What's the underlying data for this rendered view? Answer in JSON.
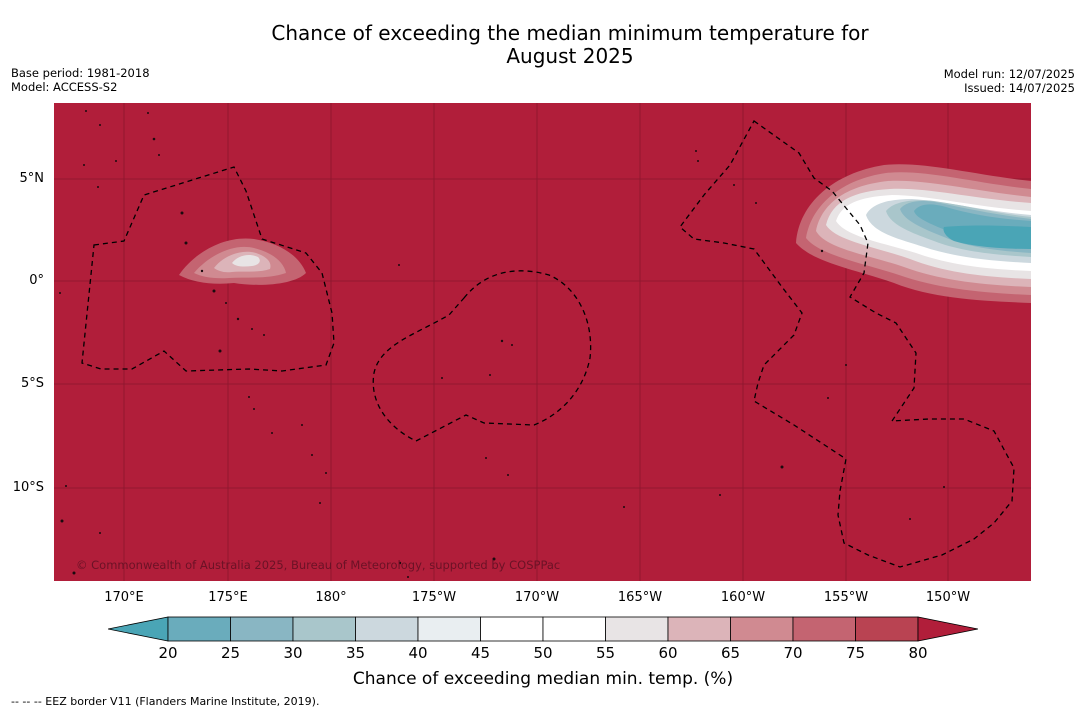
{
  "header": {
    "title_line1": "Chance of exceeding the median minimum temperature for",
    "title_line2": "August 2025",
    "base_period": "Base period: 1981-2018",
    "model": "Model: ACCESS-S2",
    "model_run": "Model run: 12/07/2025",
    "issued": "Issued: 14/07/2025"
  },
  "map": {
    "copyright": "© Commonwealth of Australia 2025, Bureau of Meteorology, supported by COSPPac",
    "lat_labels": [
      "5°N",
      "0°",
      "5°S",
      "10°S"
    ],
    "lon_labels": [
      "170°E",
      "175°E",
      "180°",
      "175°W",
      "170°W",
      "165°W",
      "160°W",
      "155°W",
      "150°W"
    ],
    "background_color": "#b11e3a",
    "eez_line_style": "dashed black"
  },
  "colorbar": {
    "ticks": [
      "20",
      "25",
      "30",
      "35",
      "40",
      "45",
      "50",
      "55",
      "60",
      "65",
      "70",
      "75",
      "80"
    ],
    "colors": [
      "#4aa5b6",
      "#6aacbc",
      "#89b6c3",
      "#a9c6cb",
      "#ccd8de",
      "#e9eef1",
      "#ffffff",
      "#ffffff",
      "#e8e4e5",
      "#dcb4b9",
      "#d08a91",
      "#c46471",
      "#b94352",
      "#b11e3a"
    ],
    "label": "Chance of exceeding median min. temp. (%)"
  },
  "footnote": "--  --  -- EEZ border V11 (Flanders Marine Institute, 2019)."
}
